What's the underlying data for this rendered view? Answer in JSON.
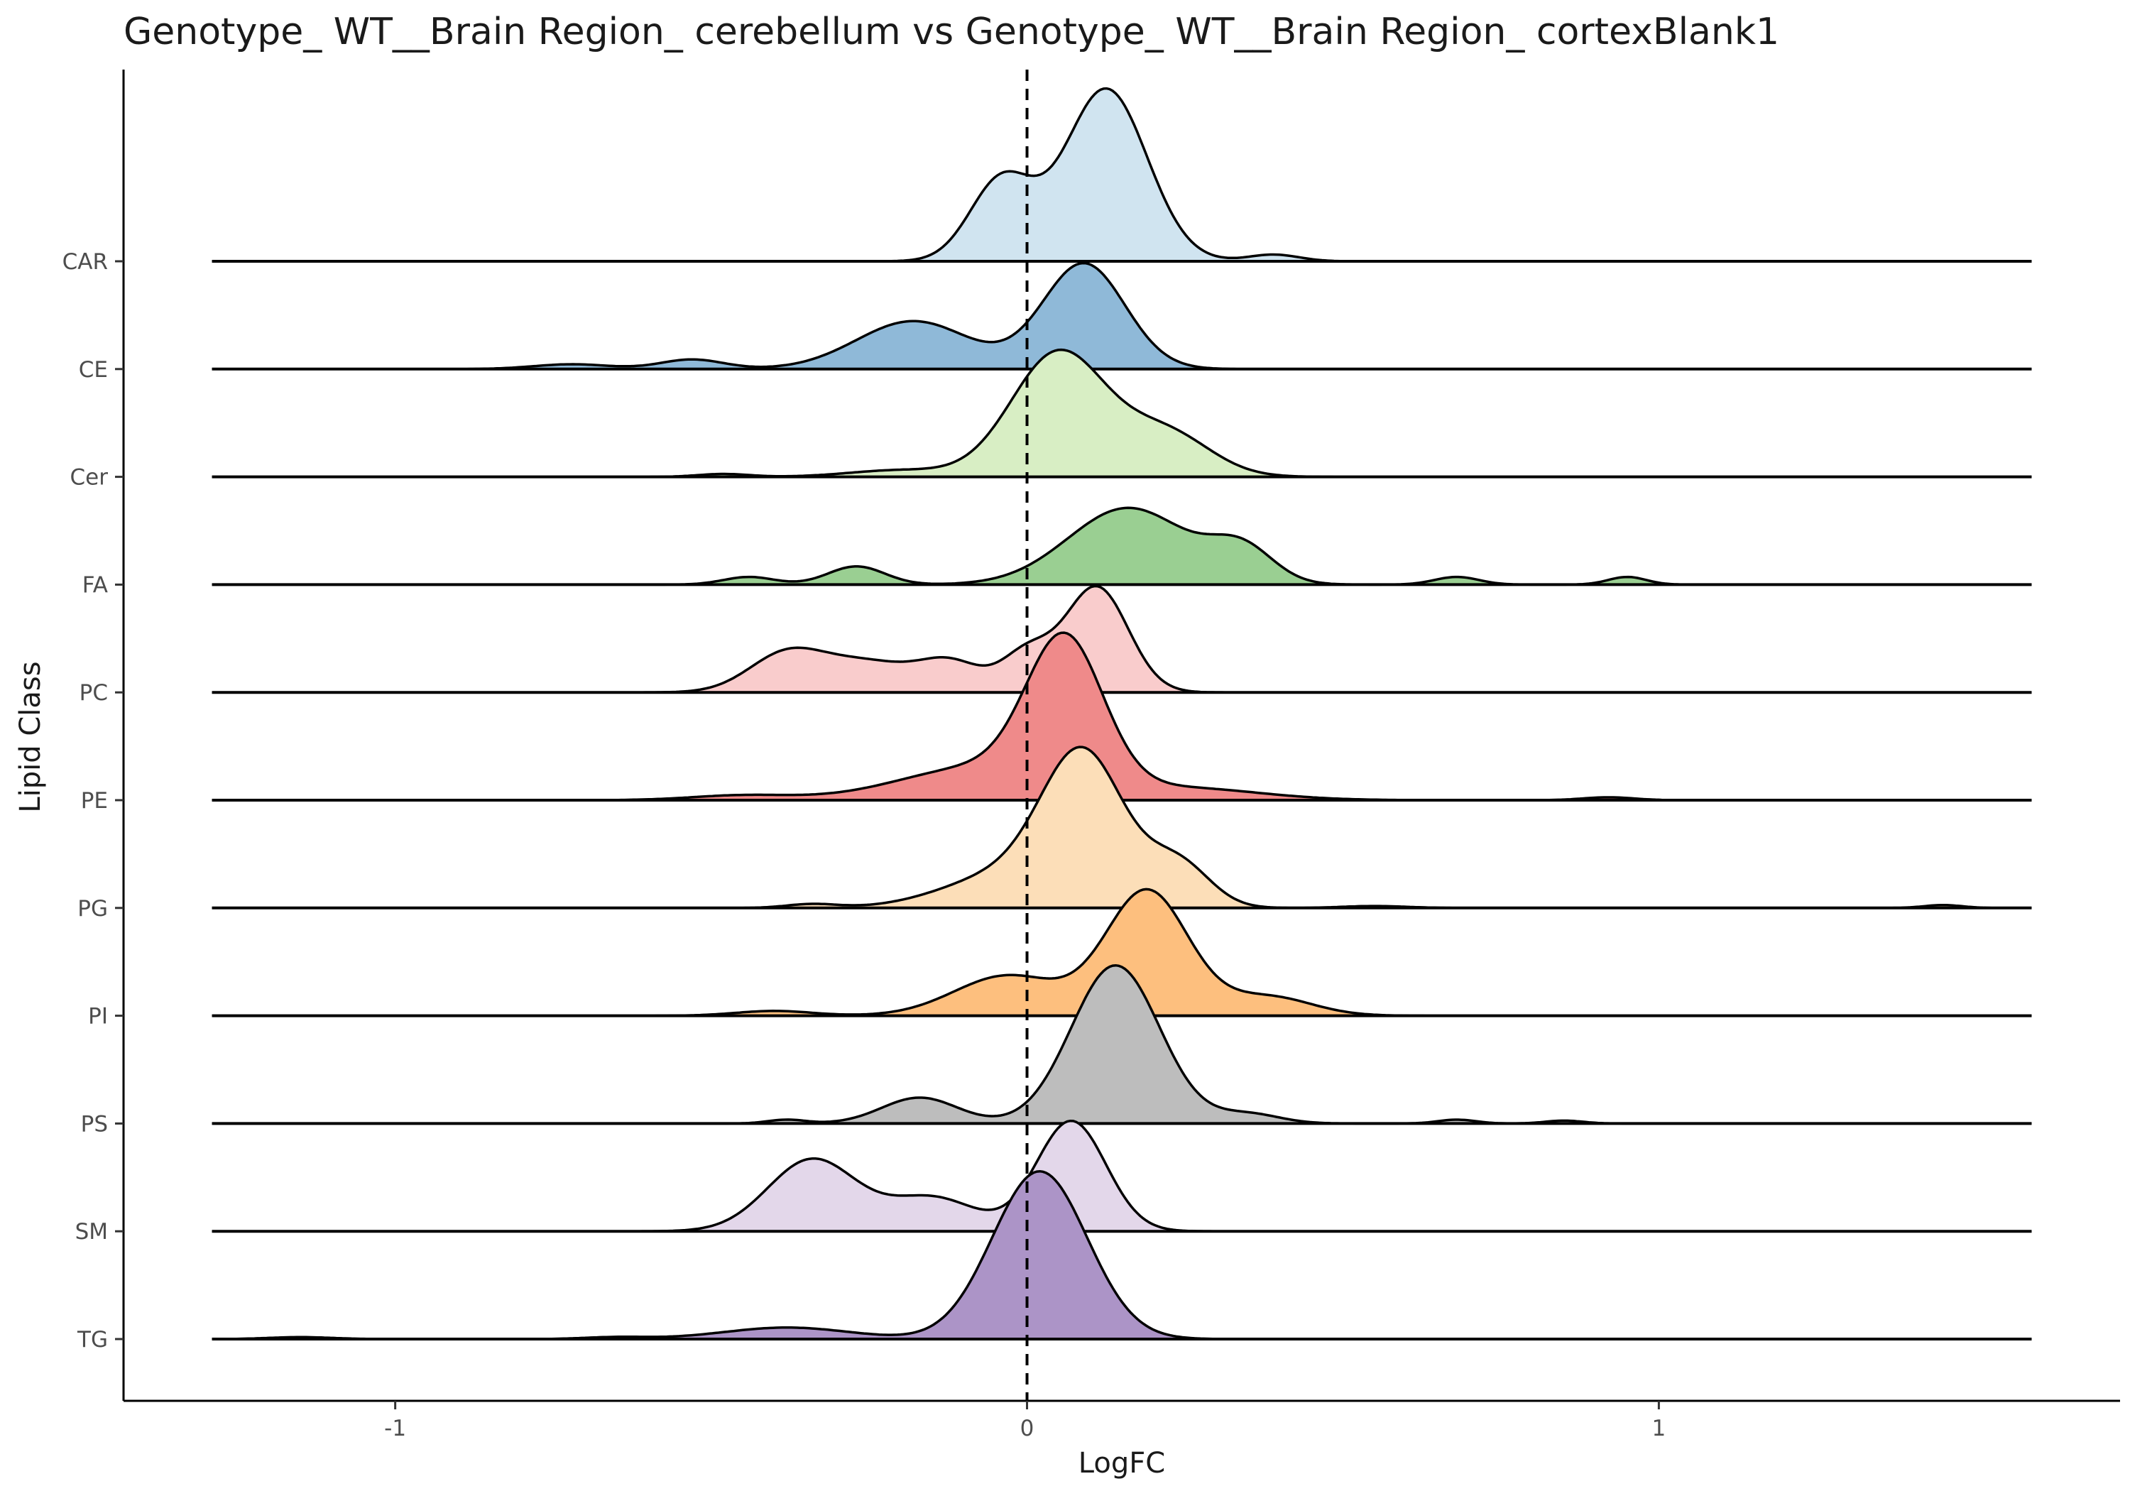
{
  "chart_data": {
    "type": "ridgeline",
    "title": "Genotype_ WT__Brain Region_ cerebellum vs Genotype_ WT__Brain Region_ cortexBlank1",
    "xlabel": "LogFC",
    "ylabel": "Lipid Class",
    "xlim": [
      -1.43,
      1.73
    ],
    "x_ticks": [
      -1,
      0,
      1
    ],
    "x_tick_labels": [
      "-1",
      "0",
      "1"
    ],
    "reference_line": {
      "x": 0,
      "style": "dashed"
    },
    "grid": false,
    "legend": "none",
    "density_x_range": [
      -1.29,
      1.59
    ],
    "series": [
      {
        "name": "CAR",
        "color": "#d0e4f0",
        "peaks": [
          {
            "mu": 0.125,
            "sigma": 0.065,
            "h": 1.8
          },
          {
            "mu": -0.04,
            "sigma": 0.05,
            "h": 0.85
          },
          {
            "mu": 0.39,
            "sigma": 0.04,
            "h": 0.07
          }
        ]
      },
      {
        "name": "CE",
        "color": "#8fb9d8",
        "peaks": [
          {
            "mu": 0.09,
            "sigma": 0.065,
            "h": 1.1
          },
          {
            "mu": -0.18,
            "sigma": 0.09,
            "h": 0.5
          },
          {
            "mu": -0.53,
            "sigma": 0.05,
            "h": 0.1
          },
          {
            "mu": -0.72,
            "sigma": 0.06,
            "h": 0.05
          }
        ]
      },
      {
        "name": "Cer",
        "color": "#d8eec4",
        "peaks": [
          {
            "mu": 0.05,
            "sigma": 0.075,
            "h": 1.3
          },
          {
            "mu": 0.22,
            "sigma": 0.07,
            "h": 0.45
          },
          {
            "mu": -0.2,
            "sigma": 0.08,
            "h": 0.07
          },
          {
            "mu": -0.48,
            "sigma": 0.04,
            "h": 0.03
          }
        ]
      },
      {
        "name": "FA",
        "color": "#9acf92",
        "peaks": [
          {
            "mu": 0.16,
            "sigma": 0.095,
            "h": 0.8
          },
          {
            "mu": 0.34,
            "sigma": 0.05,
            "h": 0.35
          },
          {
            "mu": -0.27,
            "sigma": 0.045,
            "h": 0.19
          },
          {
            "mu": -0.44,
            "sigma": 0.04,
            "h": 0.08
          },
          {
            "mu": 0.68,
            "sigma": 0.035,
            "h": 0.08
          },
          {
            "mu": 0.95,
            "sigma": 0.03,
            "h": 0.08
          }
        ]
      },
      {
        "name": "PC",
        "color": "#f9cccc",
        "peaks": [
          {
            "mu": 0.11,
            "sigma": 0.05,
            "h": 1.1
          },
          {
            "mu": -0.38,
            "sigma": 0.06,
            "h": 0.4
          },
          {
            "mu": -0.25,
            "sigma": 0.07,
            "h": 0.3
          },
          {
            "mu": -0.12,
            "sigma": 0.05,
            "h": 0.3
          },
          {
            "mu": 0.0,
            "sigma": 0.04,
            "h": 0.4
          }
        ]
      },
      {
        "name": "PE",
        "color": "#ef8a8a",
        "peaks": [
          {
            "mu": 0.06,
            "sigma": 0.06,
            "h": 1.5
          },
          {
            "mu": -0.07,
            "sigma": 0.13,
            "h": 0.35
          },
          {
            "mu": 0.25,
            "sigma": 0.12,
            "h": 0.12
          },
          {
            "mu": -0.45,
            "sigma": 0.08,
            "h": 0.05
          },
          {
            "mu": 0.92,
            "sigma": 0.04,
            "h": 0.03
          }
        ]
      },
      {
        "name": "PG",
        "color": "#fcdeb8",
        "peaks": [
          {
            "mu": 0.09,
            "sigma": 0.065,
            "h": 1.5
          },
          {
            "mu": -0.03,
            "sigma": 0.1,
            "h": 0.35
          },
          {
            "mu": 0.24,
            "sigma": 0.05,
            "h": 0.45
          },
          {
            "mu": -0.34,
            "sigma": 0.04,
            "h": 0.04
          },
          {
            "mu": 0.55,
            "sigma": 0.05,
            "h": 0.02
          },
          {
            "mu": 1.45,
            "sigma": 0.03,
            "h": 0.03
          }
        ]
      },
      {
        "name": "PI",
        "color": "#fdbf7e",
        "peaks": [
          {
            "mu": 0.19,
            "sigma": 0.065,
            "h": 1.3
          },
          {
            "mu": -0.03,
            "sigma": 0.085,
            "h": 0.42
          },
          {
            "mu": 0.38,
            "sigma": 0.07,
            "h": 0.2
          },
          {
            "mu": -0.4,
            "sigma": 0.06,
            "h": 0.05
          }
        ]
      },
      {
        "name": "PS",
        "color": "#bdbdbd",
        "peaks": [
          {
            "mu": 0.14,
            "sigma": 0.07,
            "h": 1.65
          },
          {
            "mu": -0.17,
            "sigma": 0.06,
            "h": 0.27
          },
          {
            "mu": 0.35,
            "sigma": 0.05,
            "h": 0.1
          },
          {
            "mu": -0.38,
            "sigma": 0.03,
            "h": 0.04
          },
          {
            "mu": 0.68,
            "sigma": 0.03,
            "h": 0.04
          },
          {
            "mu": 0.85,
            "sigma": 0.03,
            "h": 0.03
          }
        ]
      },
      {
        "name": "SM",
        "color": "#e3d7ea",
        "peaks": [
          {
            "mu": 0.07,
            "sigma": 0.055,
            "h": 1.15
          },
          {
            "mu": -0.34,
            "sigma": 0.07,
            "h": 0.75
          },
          {
            "mu": -0.15,
            "sigma": 0.07,
            "h": 0.35
          }
        ]
      },
      {
        "name": "TG",
        "color": "#ac94c7",
        "peaks": [
          {
            "mu": 0.02,
            "sigma": 0.075,
            "h": 1.75
          },
          {
            "mu": -0.38,
            "sigma": 0.1,
            "h": 0.12
          },
          {
            "mu": -1.15,
            "sigma": 0.05,
            "h": 0.02
          },
          {
            "mu": -0.65,
            "sigma": 0.05,
            "h": 0.02
          }
        ]
      }
    ]
  }
}
